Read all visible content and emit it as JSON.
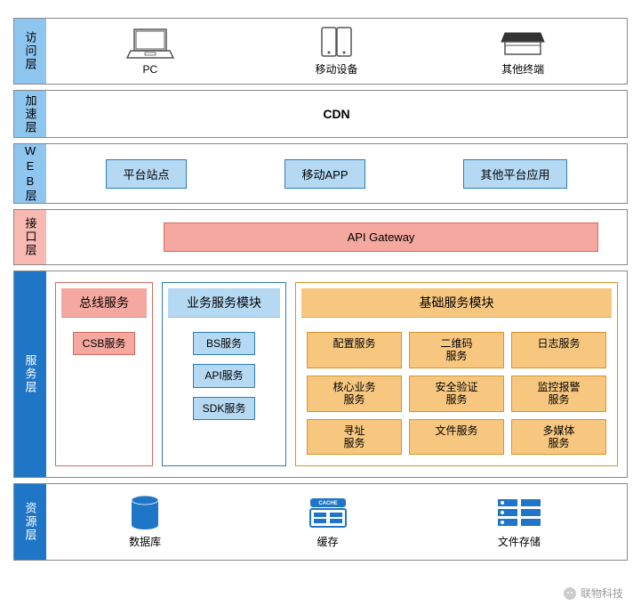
{
  "colors": {
    "blue_label_bg": "#8ec6f0",
    "blue_label_border": "#3a8cc7",
    "blue_fill": "#b5d9f3",
    "blue_border": "#2d7db8",
    "salmon_bg": "#f7b9b2",
    "salmon_border": "#d26b5f",
    "salmon_fill": "#f5a89f",
    "orange_bg": "#f8c987",
    "orange_border": "#d9942a",
    "orange_fill": "#f7c77f",
    "gray_line": "#555555",
    "service_blue_bg": "#1f76c7",
    "resource_blue_bg": "#1f76c7",
    "text": "#222222",
    "text_light": "#ffffff",
    "db_color": "#1f76c7",
    "cache_color": "#1f76c7",
    "storage_color": "#1f76c7"
  },
  "layers": {
    "access": {
      "label": "访问层",
      "items": [
        {
          "name": "PC",
          "icon": "laptop"
        },
        {
          "name": "移动设备",
          "icon": "mobile"
        },
        {
          "name": "其他终端",
          "icon": "scanner"
        }
      ]
    },
    "accel": {
      "label": "加速层",
      "text": "CDN"
    },
    "web": {
      "label": "WEB层",
      "items": [
        "平台站点",
        "移动APP",
        "其他平台应用"
      ]
    },
    "interface": {
      "label": "接口层",
      "box": "API Gateway"
    },
    "service": {
      "label": "服务层",
      "bus": {
        "header": "总线服务",
        "items": [
          "CSB服务"
        ]
      },
      "biz": {
        "header": "业务服务模块",
        "items": [
          "BS服务",
          "API服务",
          "SDK服务"
        ]
      },
      "base": {
        "header": "基础服务模块",
        "items": [
          "配置服务",
          "二维码\n服务",
          "日志服务",
          "核心业务\n服务",
          "安全验证\n服务",
          "监控报警\n服务",
          "寻址\n服务",
          "文件服务",
          "多媒体\n服务"
        ]
      }
    },
    "resource": {
      "label": "资源层",
      "items": [
        {
          "name": "数据库",
          "icon": "db"
        },
        {
          "name": "缓存",
          "icon": "cache"
        },
        {
          "name": "文件存储",
          "icon": "storage"
        }
      ]
    }
  },
  "watermark": "联物科技"
}
